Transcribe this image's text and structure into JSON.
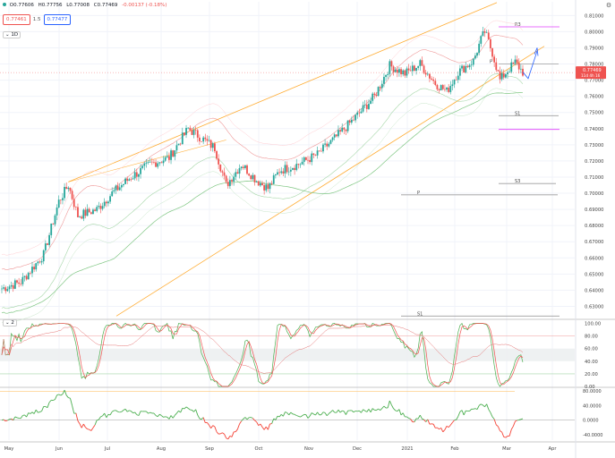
{
  "header": {
    "open": "O0.77606",
    "high": "H0.77756",
    "low": "L0.77008",
    "close": "C0.77469",
    "change": "-0.00137 (-0.18%)",
    "sell_price": "0.77461",
    "spread": "1.5",
    "buy_price": "0.77477",
    "interval": "1D"
  },
  "indicator2_label": "2",
  "price_tag": {
    "value": "0.77469",
    "sub": "11d 4h 16"
  },
  "colors": {
    "up": "#26a69a",
    "down": "#ef5350",
    "channel": "#ff9800",
    "pivot": "#9c27b0",
    "mom_up": "#4caf50",
    "mom_down": "#f44336"
  },
  "chart_data": {
    "type": "candlestick",
    "price_axis_ticks": [
      "0.81000",
      "0.80000",
      "0.79000",
      "0.78000",
      "0.77000",
      "0.76000",
      "0.75000",
      "0.74000",
      "0.73000",
      "0.72000",
      "0.71000",
      "0.70000",
      "0.69000",
      "0.68000",
      "0.67000",
      "0.66000",
      "0.65000",
      "0.64000",
      "0.63000"
    ],
    "price_ylim": [
      0.6225,
      0.8185
    ],
    "time_axis": [
      "May",
      "Jun",
      "Jul",
      "Aug",
      "Sep",
      "Oct",
      "Nov",
      "Dec",
      "2021",
      "Feb",
      "Mar",
      "Apr"
    ],
    "pivot_labels": [
      {
        "label": "R3",
        "value": 0.803
      },
      {
        "label": "P",
        "value": 0.78
      },
      {
        "label": "S1",
        "value": 0.748
      },
      {
        "label": "S3",
        "value": 0.706
      },
      {
        "label": "P",
        "value": 0.699
      },
      {
        "label": "S1",
        "value": 0.624
      }
    ],
    "stoch_ticks": [
      "100.00",
      "80.00",
      "60.00",
      "40.00",
      "20.00",
      "0.00"
    ],
    "stoch_ylim": [
      0,
      105
    ],
    "momentum_ticks": [
      "80.0000",
      "40.0000",
      "0.0000",
      "-40.0000"
    ],
    "momentum_ylim": [
      -55,
      88
    ]
  }
}
